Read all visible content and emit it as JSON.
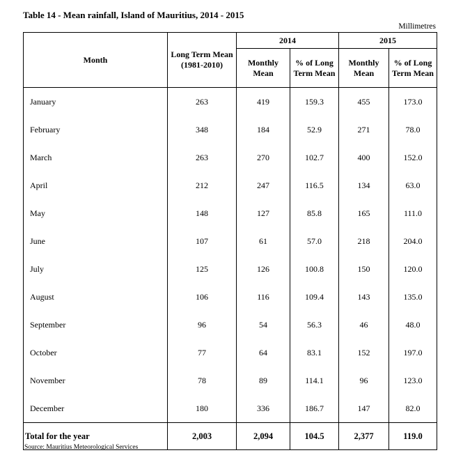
{
  "title": "Table 14 - Mean rainfall, Island of Mauritius, 2014 - 2015",
  "unit": "Millimetres",
  "headers": {
    "month": "Month",
    "ltm": "Long Term Mean (1981-2010)",
    "y2014": "2014",
    "y2015": "2015",
    "monthly_mean": "Monthly Mean",
    "pct": "% of Long Term Mean"
  },
  "rows": [
    [
      "January",
      "263",
      "419",
      "159.3",
      "455",
      "173.0"
    ],
    [
      "February",
      "348",
      "184",
      "52.9",
      "271",
      "78.0"
    ],
    [
      "March",
      "263",
      "270",
      "102.7",
      "400",
      "152.0"
    ],
    [
      "April",
      "212",
      "247",
      "116.5",
      "134",
      "63.0"
    ],
    [
      "May",
      "148",
      "127",
      "85.8",
      "165",
      "111.0"
    ],
    [
      "June",
      "107",
      "61",
      "57.0",
      "218",
      "204.0"
    ],
    [
      "July",
      "125",
      "126",
      "100.8",
      "150",
      "120.0"
    ],
    [
      "August",
      "106",
      "116",
      "109.4",
      "143",
      "135.0"
    ],
    [
      "September",
      "96",
      "54",
      "56.3",
      "46",
      "48.0"
    ],
    [
      "October",
      "77",
      "64",
      "83.1",
      "152",
      "197.0"
    ],
    [
      "November",
      "78",
      "89",
      "114.1",
      "96",
      "123.0"
    ],
    [
      "December",
      "180",
      "336",
      "186.7",
      "147",
      "82.0"
    ]
  ],
  "total": [
    "Total for the year",
    "2,003",
    "2,094",
    "104.5",
    "2,377",
    "119.0"
  ],
  "source": "Source: Mauritius Meteorological Services"
}
